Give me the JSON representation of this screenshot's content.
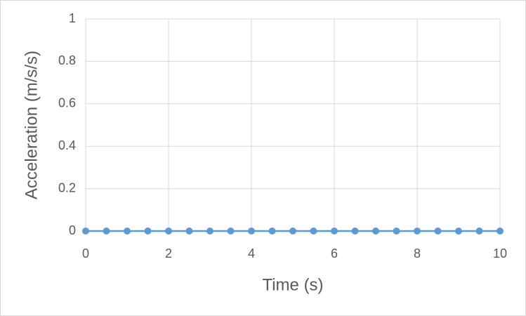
{
  "chart_data": {
    "type": "line",
    "x_label": "Time (s)",
    "y_label": "Acceleration (m/s/s)",
    "x": [
      0,
      0.5,
      1,
      1.5,
      2,
      2.5,
      3,
      3.5,
      4,
      4.5,
      5,
      5.5,
      6,
      6.5,
      7,
      7.5,
      8,
      8.5,
      9,
      9.5,
      10
    ],
    "series": [
      {
        "color": "#5b9bd5",
        "values": [
          0,
          0,
          0,
          0,
          0,
          0,
          0,
          0,
          0,
          0,
          0,
          0,
          0,
          0,
          0,
          0,
          0,
          0,
          0,
          0,
          0
        ]
      }
    ],
    "xlim": [
      0,
      10
    ],
    "xticks": [
      0,
      2,
      4,
      6,
      8,
      10
    ],
    "ylim": [
      0,
      1
    ],
    "yticks": [
      0,
      0.2,
      0.4,
      0.6,
      0.8,
      1
    ],
    "grid": true,
    "markers": true
  }
}
